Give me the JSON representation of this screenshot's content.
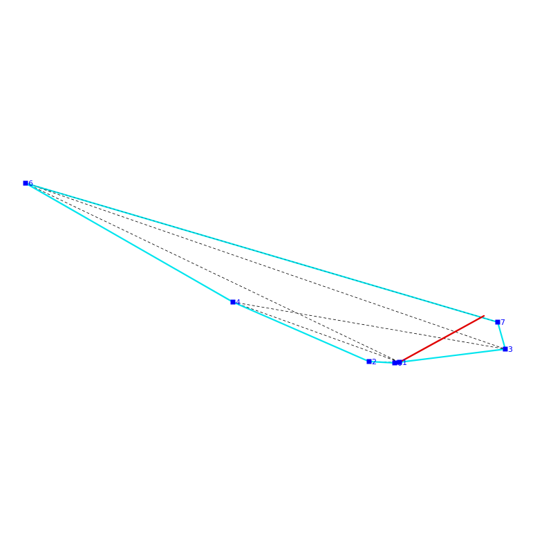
{
  "colors": {
    "background": "#ffffff",
    "hull": "#00e5ee",
    "dashed": "#000000",
    "highlight": "#e00000",
    "node": "#0000ff"
  },
  "nodes": [
    {
      "id": "0",
      "label": "0"
    },
    {
      "id": "1",
      "label": "1"
    },
    {
      "id": "2",
      "label": "2"
    },
    {
      "id": "3",
      "label": "3"
    },
    {
      "id": "4",
      "label": "4"
    },
    {
      "id": "6",
      "label": "6"
    },
    {
      "id": "7",
      "label": "7"
    }
  ],
  "hull_order": [
    "6",
    "4",
    "2",
    "0",
    "1",
    "3",
    "7",
    "6"
  ],
  "dashed_edges": [
    [
      "6",
      "1"
    ],
    [
      "6",
      "3"
    ],
    [
      "4",
      "1"
    ],
    [
      "4",
      "3"
    ],
    [
      "2",
      "1"
    ],
    [
      "0",
      "3"
    ]
  ],
  "highlight_edge": [
    "1",
    "7"
  ]
}
